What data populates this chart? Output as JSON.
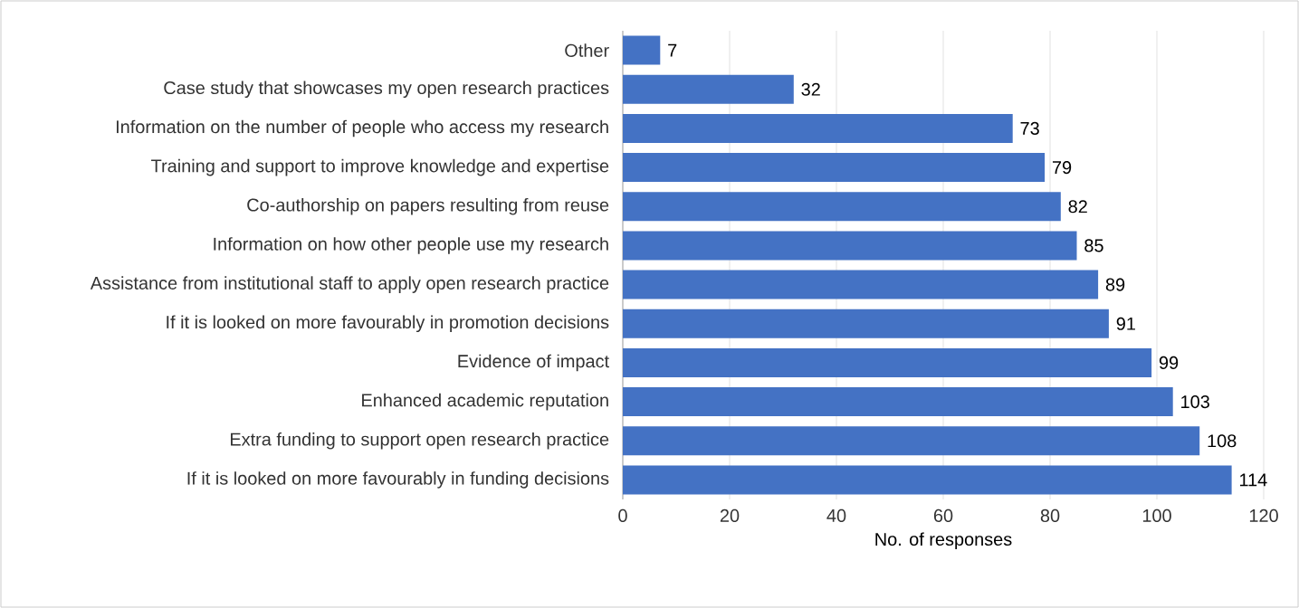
{
  "chart_data": {
    "type": "bar",
    "orientation": "horizontal",
    "xlabel": "No. of responses",
    "categories": [
      "Other",
      "Case study that showcases my open research practices",
      "Information on the number of people who access my research",
      "Training and support to improve knowledge and expertise",
      "Co-authorship on papers resulting from reuse",
      "Information on how other people use my research",
      "Assistance from institutional staff to apply open research practice",
      "If it is looked on more favourably in promotion decisions",
      "Evidence of impact",
      "Enhanced academic reputation",
      "Extra funding to support open research practice",
      "If it is looked on more favourably in funding decisions"
    ],
    "values": [
      7,
      32,
      73,
      79,
      82,
      85,
      89,
      91,
      99,
      103,
      108,
      114
    ],
    "color": "#4472c4",
    "xlim": [
      0,
      120
    ],
    "xticks": [
      0,
      20,
      40,
      60,
      80,
      100,
      120
    ],
    "grid": "x",
    "data_labels": true
  }
}
